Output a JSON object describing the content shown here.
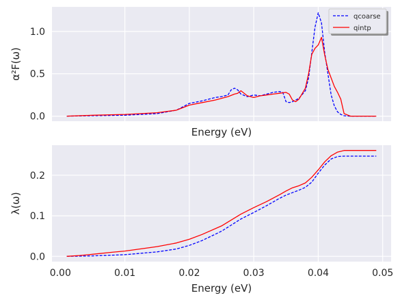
{
  "chart_data": [
    {
      "type": "line",
      "xlabel": "Energy (eV)",
      "ylabel": "α²F(ω)",
      "xlim": [
        -0.0013,
        0.0513
      ],
      "ylim": [
        -0.06,
        1.29
      ],
      "yticks": [
        0.0,
        0.5,
        1.0
      ],
      "ytick_labels": [
        "0.0",
        "0.5",
        "1.0"
      ],
      "xtick_labels_shown": false,
      "grid": true,
      "legend_position": "top-right",
      "series": [
        {
          "name": "qcoarse",
          "color": "#0000ff",
          "style": "dashed",
          "x": [
            0.001,
            0.005,
            0.01,
            0.015,
            0.018,
            0.02,
            0.022,
            0.024,
            0.025,
            0.026,
            0.0265,
            0.027,
            0.0275,
            0.028,
            0.029,
            0.03,
            0.031,
            0.032,
            0.033,
            0.034,
            0.0345,
            0.035,
            0.0355,
            0.036,
            0.037,
            0.038,
            0.0385,
            0.039,
            0.0395,
            0.04,
            0.0405,
            0.041,
            0.0415,
            0.042,
            0.0425,
            0.043,
            0.0435,
            0.044,
            0.045,
            0.049
          ],
          "y": [
            0.0,
            0.005,
            0.01,
            0.03,
            0.07,
            0.15,
            0.18,
            0.22,
            0.23,
            0.25,
            0.31,
            0.33,
            0.31,
            0.26,
            0.23,
            0.25,
            0.24,
            0.26,
            0.28,
            0.29,
            0.28,
            0.17,
            0.16,
            0.17,
            0.21,
            0.3,
            0.45,
            0.75,
            1.05,
            1.22,
            1.1,
            0.75,
            0.5,
            0.25,
            0.12,
            0.05,
            0.02,
            0.005,
            0.0,
            0.0
          ]
        },
        {
          "name": "qintp",
          "color": "#ff0000",
          "style": "solid",
          "x": [
            0.001,
            0.005,
            0.01,
            0.015,
            0.018,
            0.02,
            0.022,
            0.024,
            0.025,
            0.026,
            0.027,
            0.0275,
            0.028,
            0.029,
            0.03,
            0.031,
            0.032,
            0.033,
            0.034,
            0.035,
            0.0355,
            0.036,
            0.0365,
            0.037,
            0.038,
            0.0385,
            0.039,
            0.0395,
            0.04,
            0.0405,
            0.041,
            0.0415,
            0.042,
            0.0425,
            0.043,
            0.0435,
            0.044,
            0.045,
            0.049
          ],
          "y": [
            0.0,
            0.01,
            0.02,
            0.04,
            0.07,
            0.13,
            0.16,
            0.19,
            0.21,
            0.23,
            0.26,
            0.27,
            0.3,
            0.24,
            0.22,
            0.24,
            0.25,
            0.26,
            0.27,
            0.28,
            0.26,
            0.19,
            0.17,
            0.2,
            0.33,
            0.5,
            0.73,
            0.8,
            0.84,
            0.93,
            0.72,
            0.55,
            0.45,
            0.35,
            0.28,
            0.2,
            0.03,
            0.0,
            0.0
          ]
        }
      ]
    },
    {
      "type": "line",
      "xlabel": "Energy (eV)",
      "ylabel": "λ(ω)",
      "xlim": [
        -0.0013,
        0.0513
      ],
      "ylim": [
        -0.013,
        0.274
      ],
      "xticks": [
        0.0,
        0.01,
        0.02,
        0.03,
        0.04,
        0.05
      ],
      "xtick_labels": [
        "0.00",
        "0.01",
        "0.02",
        "0.03",
        "0.04",
        "0.05"
      ],
      "yticks": [
        0.0,
        0.1,
        0.2
      ],
      "ytick_labels": [
        "0.0",
        "0.1",
        "0.2"
      ],
      "grid": true,
      "series": [
        {
          "name": "qcoarse",
          "color": "#0000ff",
          "style": "dashed",
          "x": [
            0.001,
            0.005,
            0.01,
            0.015,
            0.018,
            0.02,
            0.022,
            0.025,
            0.028,
            0.03,
            0.032,
            0.034,
            0.035,
            0.036,
            0.037,
            0.038,
            0.039,
            0.04,
            0.041,
            0.042,
            0.043,
            0.044,
            0.045,
            0.049
          ],
          "y": [
            0.0,
            0.001,
            0.004,
            0.011,
            0.018,
            0.027,
            0.039,
            0.062,
            0.092,
            0.108,
            0.125,
            0.143,
            0.151,
            0.157,
            0.163,
            0.17,
            0.183,
            0.205,
            0.225,
            0.24,
            0.246,
            0.247,
            0.247,
            0.247
          ]
        },
        {
          "name": "qintp",
          "color": "#ff0000",
          "style": "solid",
          "x": [
            0.001,
            0.003,
            0.005,
            0.008,
            0.01,
            0.015,
            0.018,
            0.02,
            0.022,
            0.025,
            0.028,
            0.03,
            0.032,
            0.034,
            0.035,
            0.036,
            0.037,
            0.038,
            0.039,
            0.04,
            0.041,
            0.042,
            0.043,
            0.044,
            0.045,
            0.049
          ],
          "y": [
            0.0,
            0.002,
            0.005,
            0.01,
            0.013,
            0.024,
            0.033,
            0.042,
            0.054,
            0.075,
            0.104,
            0.12,
            0.135,
            0.152,
            0.161,
            0.169,
            0.174,
            0.181,
            0.195,
            0.213,
            0.233,
            0.248,
            0.257,
            0.261,
            0.261,
            0.261
          ]
        }
      ]
    }
  ]
}
